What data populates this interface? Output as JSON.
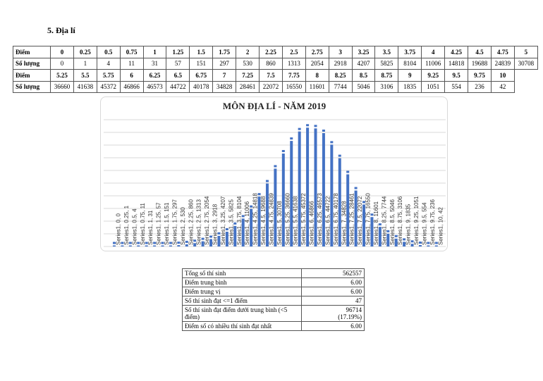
{
  "heading": "5.  Địa lí",
  "score_table": {
    "row_label_score": "Điểm",
    "row_label_count": "Số lượng",
    "block1_scores": [
      "0",
      "0.25",
      "0.5",
      "0.75",
      "1",
      "1.25",
      "1.5",
      "1.75",
      "2",
      "2.25",
      "2.5",
      "2.75",
      "3",
      "3.25",
      "3.5",
      "3.75",
      "4",
      "4.25",
      "4.5",
      "4.75",
      "5"
    ],
    "block1_counts": [
      "0",
      "1",
      "4",
      "11",
      "31",
      "57",
      "151",
      "297",
      "530",
      "860",
      "1313",
      "2054",
      "2918",
      "4207",
      "5825",
      "8104",
      "11006",
      "14818",
      "19688",
      "24839",
      "30708"
    ],
    "block2_scores": [
      "5.25",
      "5.5",
      "5.75",
      "6",
      "6.25",
      "6.5",
      "6.75",
      "7",
      "7.25",
      "7.5",
      "7.75",
      "8",
      "8.25",
      "8.5",
      "8.75",
      "9",
      "9.25",
      "9.5",
      "9.75",
      "10"
    ],
    "block2_counts": [
      "36660",
      "41638",
      "45372",
      "46866",
      "46573",
      "44722",
      "40178",
      "34828",
      "28461",
      "22072",
      "16550",
      "11601",
      "7744",
      "5046",
      "3106",
      "1835",
      "1051",
      "554",
      "236",
      "42"
    ]
  },
  "chart_data": {
    "type": "bar",
    "title": "MÔN ĐỊA LÍ - NĂM 2019",
    "series_name": "Series1",
    "x": [
      0,
      0.25,
      0.5,
      0.75,
      1,
      1.25,
      1.5,
      1.75,
      2,
      2.25,
      2.5,
      2.75,
      3,
      3.25,
      3.5,
      3.75,
      4,
      4.25,
      4.5,
      4.75,
      5,
      5.25,
      5.5,
      5.75,
      6,
      6.25,
      6.5,
      6.75,
      7,
      7.25,
      7.5,
      7.75,
      8,
      8.25,
      8.5,
      8.75,
      9,
      9.25,
      9.5,
      9.75,
      10
    ],
    "values": [
      0,
      1,
      4,
      11,
      31,
      57,
      151,
      297,
      530,
      860,
      1313,
      2054,
      2918,
      4207,
      5825,
      8104,
      11006,
      14818,
      19688,
      24839,
      30708,
      36660,
      41638,
      45372,
      46866,
      46573,
      44722,
      40178,
      34828,
      28461,
      22072,
      16550,
      11601,
      7744,
      5046,
      3106,
      1835,
      1051,
      554,
      236,
      42
    ],
    "ylim": [
      0,
      50000
    ],
    "ystep": 5000,
    "grid": true,
    "bar_color": "#4472c4"
  },
  "summary": [
    {
      "label": "Tổng số thí sinh",
      "value": "562557"
    },
    {
      "label": "Điểm trung bình",
      "value": "6.00"
    },
    {
      "label": "Điểm trung vị",
      "value": "6.00"
    },
    {
      "label": "Số thí sinh đạt <=1 điểm",
      "value": "47"
    },
    {
      "label": "Số thí sinh đạt điểm dưới trung bình (<5 điểm)",
      "value": "96714",
      "value2": "(17.19%)"
    },
    {
      "label": "Điểm số có nhiều thí sinh đạt nhất",
      "value": "6.00"
    }
  ]
}
